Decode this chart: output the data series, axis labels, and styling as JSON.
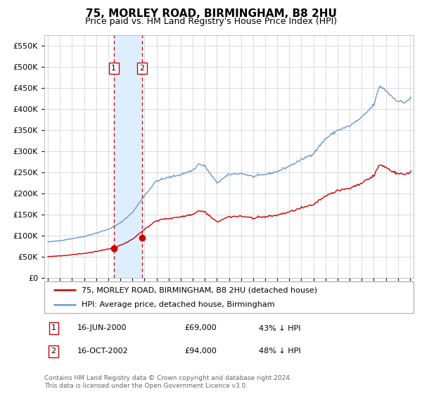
{
  "title": "75, MORLEY ROAD, BIRMINGHAM, B8 2HU",
  "subtitle": "Price paid vs. HM Land Registry's House Price Index (HPI)",
  "transactions": [
    {
      "date": "2000-06-16",
      "price": 69000,
      "label": "1",
      "pct_below": 43
    },
    {
      "date": "2002-10-16",
      "price": 94000,
      "label": "2",
      "pct_below": 48
    }
  ],
  "legend_line1": "75, MORLEY ROAD, BIRMINGHAM, B8 2HU (detached house)",
  "legend_line2": "HPI: Average price, detached house, Birmingham",
  "footer": "Contains HM Land Registry data © Crown copyright and database right 2024.\nThis data is licensed under the Open Government Licence v3.0.",
  "table_rows": [
    [
      "1",
      "16-JUN-2000",
      "£69,000",
      "43% ↓ HPI"
    ],
    [
      "2",
      "16-OCT-2002",
      "£94,000",
      "48% ↓ HPI"
    ]
  ],
  "hpi_color": "#6699cc",
  "price_color": "#cc0000",
  "vline_color": "#cc0000",
  "shade_color": "#ddeeff",
  "background_color": "#ffffff",
  "grid_color": "#cccccc",
  "ylim": [
    0,
    575000
  ],
  "yticks": [
    0,
    50000,
    100000,
    150000,
    200000,
    250000,
    300000,
    350000,
    400000,
    450000,
    500000,
    550000
  ],
  "xlim_start": 1994.7,
  "xlim_end": 2025.3,
  "key_points_hpi": {
    "1995.0": 85000,
    "1996.0": 88000,
    "1997.0": 93000,
    "1998.0": 98000,
    "1999.0": 106000,
    "2000.0": 115000,
    "2001.0": 130000,
    "2002.0": 155000,
    "2003.0": 195000,
    "2004.0": 230000,
    "2005.0": 238000,
    "2006.0": 245000,
    "2007.0": 255000,
    "2007.5": 270000,
    "2008.0": 265000,
    "2008.5": 245000,
    "2009.0": 225000,
    "2009.5": 235000,
    "2010.0": 245000,
    "2011.0": 248000,
    "2012.0": 240000,
    "2013.0": 245000,
    "2014.0": 252000,
    "2015.0": 265000,
    "2016.0": 280000,
    "2017.0": 295000,
    "2018.0": 330000,
    "2019.0": 350000,
    "2020.0": 360000,
    "2021.0": 380000,
    "2022.0": 410000,
    "2022.5": 455000,
    "2023.0": 445000,
    "2023.5": 430000,
    "2024.0": 420000,
    "2024.5": 415000,
    "2025.0": 425000
  },
  "hpi_scale": 0.59,
  "t1_year": 2000.458,
  "t2_year": 2002.792,
  "t1_price": 69000,
  "t2_price": 94000
}
